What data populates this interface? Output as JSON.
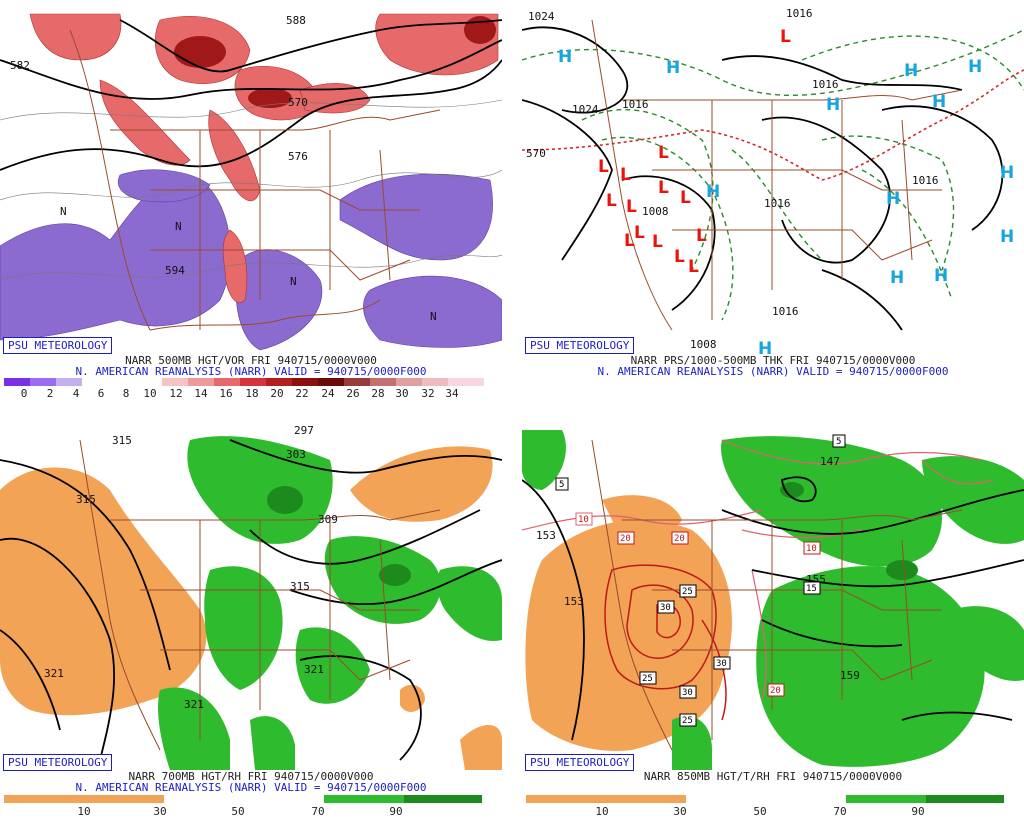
{
  "badge": "PSU METEOROLOGY",
  "panels": {
    "p1": {
      "title_line1": "NARR 500MB HGT/VOR FRI 940715/0000V000",
      "title_line2": "N. AMERICAN REANALYSIS (NARR) VALID = 940715/0000F000",
      "contour_labels": [
        "582",
        "588",
        "570",
        "576",
        "594",
        "N"
      ],
      "colorbar_ticks": [
        "0",
        "2",
        "4",
        "6",
        "8",
        "10",
        "12",
        "14",
        "16",
        "18",
        "20",
        "22",
        "24",
        "26",
        "28",
        "30",
        "32",
        "34"
      ]
    },
    "p2": {
      "title_line1": "NARR PRS/1000-500MB THK FRI 940715/0000V000",
      "title_line2": "N. AMERICAN REANALYSIS (NARR) VALID = 940715/0000F000",
      "contour_labels": [
        "1024",
        "1016",
        "1024",
        "1016",
        "1016",
        "1016",
        "1016",
        "1016",
        "1008",
        "1008",
        "570"
      ],
      "high_symbol": "H",
      "low_symbol": "L"
    },
    "p3": {
      "title_line1": "NARR 700MB HGT/RH FRI 940715/0000V000",
      "title_line2": "N. AMERICAN REANALYSIS (NARR) VALID = 940715/0000F000",
      "contour_labels": [
        "315",
        "297",
        "303",
        "315",
        "309",
        "315",
        "321",
        "321",
        "321"
      ],
      "colorbar_ticks": [
        "10",
        "30",
        "50",
        "70",
        "90"
      ]
    },
    "p4": {
      "title_line1": "NARR 850MB HGT/T/RH FRI 940715/0000V000",
      "contour_labels": [
        "153",
        "153",
        "153",
        "159",
        "147",
        "155"
      ],
      "temp_boxes": [
        "5",
        "5",
        "10",
        "20",
        "20",
        "10",
        "25",
        "30",
        "30",
        "25",
        "30",
        "25",
        "15",
        "20"
      ],
      "colorbar_ticks": [
        "10",
        "30",
        "50",
        "70",
        "90"
      ]
    }
  },
  "colors": {
    "vorticity_positive": "#d8333a",
    "vorticity_negative": "#8c6bd1",
    "dry": "#f2a356",
    "moist": "#2ebb2e",
    "moist_dark": "#1c8a1c",
    "borders": "#9a4b2b",
    "caption_blue": "#1c1cc8",
    "high_symbol": "#16a6df",
    "low_symbol": "#e8150c"
  }
}
